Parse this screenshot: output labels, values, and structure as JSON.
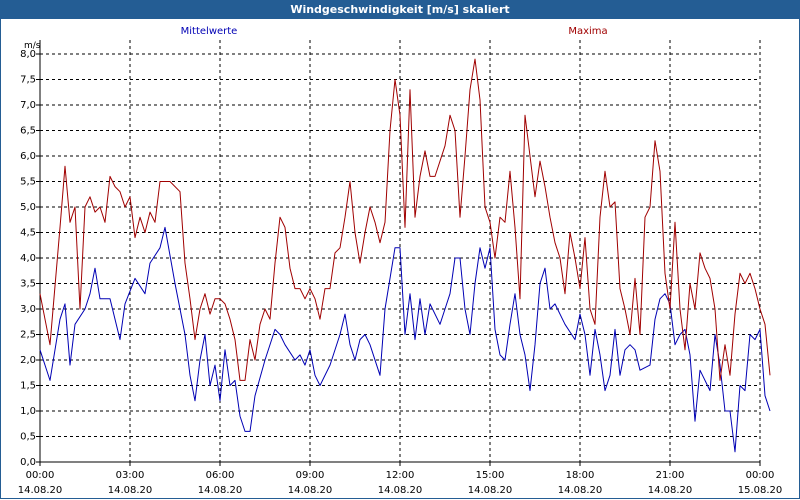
{
  "window": {
    "title": "Windgeschwindigkeit [m/s] skaliert"
  },
  "colors": {
    "titlebar": "#245d94",
    "mean": "#0000b4",
    "max": "#a00000",
    "grid": "#000000"
  },
  "chart_data": {
    "type": "line",
    "title": "Windgeschwindigkeit [m/s] skaliert",
    "ylabel": "m/s",
    "ylim": [
      0,
      8
    ],
    "yticks": [
      "0,0",
      "0,5",
      "1,0",
      "1,5",
      "2,0",
      "2,5",
      "3,0",
      "3,5",
      "4,0",
      "4,5",
      "5,0",
      "5,5",
      "6,0",
      "6,5",
      "7,0",
      "7,5",
      "8,0"
    ],
    "xlim": [
      "14.08.20 00:00",
      "15.08.20 00:00"
    ],
    "xticks": [
      {
        "time": "00:00",
        "date": "14.08.20"
      },
      {
        "time": "03:00",
        "date": "14.08.20"
      },
      {
        "time": "06:00",
        "date": "14.08.20"
      },
      {
        "time": "09:00",
        "date": "14.08.20"
      },
      {
        "time": "12:00",
        "date": "14.08.20"
      },
      {
        "time": "15:00",
        "date": "14.08.20"
      },
      {
        "time": "18:00",
        "date": "14.08.20"
      },
      {
        "time": "21:00",
        "date": "14.08.20"
      },
      {
        "time": "00:00",
        "date": "15.08.20"
      }
    ],
    "grid": true,
    "series": [
      {
        "name": "Mittelwerte",
        "color": "#0000b4",
        "points": [
          [
            "00:00",
            2.2
          ],
          [
            "00:20",
            1.6
          ],
          [
            "00:40",
            2.8
          ],
          [
            "00:50",
            3.1
          ],
          [
            "01:00",
            1.9
          ],
          [
            "01:10",
            2.7
          ],
          [
            "01:30",
            3.0
          ],
          [
            "01:40",
            3.3
          ],
          [
            "01:50",
            3.8
          ],
          [
            "02:00",
            3.2
          ],
          [
            "02:20",
            3.2
          ],
          [
            "02:40",
            2.4
          ],
          [
            "02:50",
            3.1
          ],
          [
            "03:10",
            3.6
          ],
          [
            "03:30",
            3.3
          ],
          [
            "03:40",
            3.9
          ],
          [
            "04:00",
            4.2
          ],
          [
            "04:10",
            4.6
          ],
          [
            "04:30",
            3.5
          ],
          [
            "04:50",
            2.5
          ],
          [
            "05:00",
            1.7
          ],
          [
            "05:10",
            1.2
          ],
          [
            "05:20",
            2.0
          ],
          [
            "05:30",
            2.5
          ],
          [
            "05:40",
            1.5
          ],
          [
            "05:50",
            1.9
          ],
          [
            "06:00",
            1.2
          ],
          [
            "06:10",
            2.2
          ],
          [
            "06:20",
            1.5
          ],
          [
            "06:30",
            1.6
          ],
          [
            "06:40",
            0.9
          ],
          [
            "06:50",
            0.6
          ],
          [
            "07:00",
            0.6
          ],
          [
            "07:10",
            1.3
          ],
          [
            "07:30",
            2.0
          ],
          [
            "07:50",
            2.6
          ],
          [
            "08:00",
            2.5
          ],
          [
            "08:10",
            2.3
          ],
          [
            "08:30",
            2.0
          ],
          [
            "08:40",
            2.1
          ],
          [
            "08:50",
            1.9
          ],
          [
            "09:00",
            2.2
          ],
          [
            "09:10",
            1.7
          ],
          [
            "09:20",
            1.5
          ],
          [
            "09:40",
            1.9
          ],
          [
            "10:00",
            2.5
          ],
          [
            "10:10",
            2.9
          ],
          [
            "10:20",
            2.3
          ],
          [
            "10:30",
            2.0
          ],
          [
            "10:40",
            2.4
          ],
          [
            "10:50",
            2.5
          ],
          [
            "11:00",
            2.3
          ],
          [
            "11:20",
            1.7
          ],
          [
            "11:30",
            3.0
          ],
          [
            "11:50",
            4.2
          ],
          [
            "12:00",
            4.2
          ],
          [
            "12:10",
            2.5
          ],
          [
            "12:20",
            3.3
          ],
          [
            "12:30",
            2.4
          ],
          [
            "12:40",
            3.2
          ],
          [
            "12:50",
            2.5
          ],
          [
            "13:00",
            3.1
          ],
          [
            "13:20",
            2.7
          ],
          [
            "13:30",
            3.0
          ],
          [
            "13:40",
            3.3
          ],
          [
            "13:50",
            4.0
          ],
          [
            "14:00",
            4.0
          ],
          [
            "14:10",
            3.0
          ],
          [
            "14:20",
            2.5
          ],
          [
            "14:30",
            3.5
          ],
          [
            "14:40",
            4.2
          ],
          [
            "14:50",
            3.8
          ],
          [
            "15:00",
            4.2
          ],
          [
            "15:10",
            2.6
          ],
          [
            "15:20",
            2.1
          ],
          [
            "15:30",
            2.0
          ],
          [
            "15:40",
            2.7
          ],
          [
            "15:50",
            3.3
          ],
          [
            "16:00",
            2.5
          ],
          [
            "16:10",
            2.1
          ],
          [
            "16:20",
            1.4
          ],
          [
            "16:30",
            2.3
          ],
          [
            "16:40",
            3.5
          ],
          [
            "16:50",
            3.8
          ],
          [
            "17:00",
            3.0
          ],
          [
            "17:10",
            3.1
          ],
          [
            "17:30",
            2.7
          ],
          [
            "17:50",
            2.4
          ],
          [
            "18:00",
            2.9
          ],
          [
            "18:10",
            2.5
          ],
          [
            "18:20",
            1.7
          ],
          [
            "18:30",
            2.6
          ],
          [
            "18:40",
            2.1
          ],
          [
            "18:50",
            1.4
          ],
          [
            "19:00",
            1.7
          ],
          [
            "19:10",
            2.6
          ],
          [
            "19:20",
            1.7
          ],
          [
            "19:30",
            2.2
          ],
          [
            "19:40",
            2.3
          ],
          [
            "19:50",
            2.2
          ],
          [
            "20:00",
            1.8
          ],
          [
            "20:20",
            1.9
          ],
          [
            "20:30",
            2.8
          ],
          [
            "20:40",
            3.2
          ],
          [
            "20:50",
            3.3
          ],
          [
            "21:00",
            3.1
          ],
          [
            "21:10",
            2.3
          ],
          [
            "21:20",
            2.5
          ],
          [
            "21:30",
            2.6
          ],
          [
            "21:40",
            2.1
          ],
          [
            "21:50",
            0.8
          ],
          [
            "22:00",
            1.8
          ],
          [
            "22:20",
            1.4
          ],
          [
            "22:30",
            2.5
          ],
          [
            "22:40",
            1.9
          ],
          [
            "22:50",
            1.0
          ],
          [
            "23:00",
            1.0
          ],
          [
            "23:10",
            0.2
          ],
          [
            "23:20",
            1.5
          ],
          [
            "23:30",
            1.4
          ],
          [
            "23:40",
            2.5
          ],
          [
            "23:50",
            2.4
          ],
          [
            "24:00",
            2.6
          ],
          [
            "24:10",
            1.3
          ],
          [
            "24:20",
            1.0
          ]
        ]
      },
      {
        "name": "Maxima",
        "color": "#a00000",
        "points": [
          [
            "00:00",
            3.3
          ],
          [
            "00:20",
            2.3
          ],
          [
            "00:40",
            4.6
          ],
          [
            "00:50",
            5.8
          ],
          [
            "01:00",
            4.7
          ],
          [
            "01:10",
            5.0
          ],
          [
            "01:20",
            3.0
          ],
          [
            "01:30",
            5.0
          ],
          [
            "01:40",
            5.2
          ],
          [
            "01:50",
            4.9
          ],
          [
            "02:00",
            5.0
          ],
          [
            "02:10",
            4.7
          ],
          [
            "02:20",
            5.6
          ],
          [
            "02:30",
            5.4
          ],
          [
            "02:40",
            5.3
          ],
          [
            "02:50",
            5.0
          ],
          [
            "03:00",
            5.2
          ],
          [
            "03:10",
            4.4
          ],
          [
            "03:20",
            4.8
          ],
          [
            "03:30",
            4.5
          ],
          [
            "03:40",
            4.9
          ],
          [
            "03:50",
            4.7
          ],
          [
            "04:00",
            5.5
          ],
          [
            "04:20",
            5.5
          ],
          [
            "04:40",
            5.3
          ],
          [
            "04:50",
            3.9
          ],
          [
            "05:00",
            3.2
          ],
          [
            "05:10",
            2.4
          ],
          [
            "05:20",
            3.0
          ],
          [
            "05:30",
            3.3
          ],
          [
            "05:40",
            2.9
          ],
          [
            "05:50",
            3.2
          ],
          [
            "06:00",
            3.2
          ],
          [
            "06:10",
            3.1
          ],
          [
            "06:20",
            2.8
          ],
          [
            "06:30",
            2.4
          ],
          [
            "06:40",
            1.6
          ],
          [
            "06:50",
            1.6
          ],
          [
            "07:00",
            2.4
          ],
          [
            "07:10",
            2.0
          ],
          [
            "07:20",
            2.7
          ],
          [
            "07:30",
            3.0
          ],
          [
            "07:40",
            2.8
          ],
          [
            "07:50",
            3.9
          ],
          [
            "08:00",
            4.8
          ],
          [
            "08:10",
            4.6
          ],
          [
            "08:20",
            3.8
          ],
          [
            "08:30",
            3.4
          ],
          [
            "08:40",
            3.4
          ],
          [
            "08:50",
            3.2
          ],
          [
            "09:00",
            3.4
          ],
          [
            "09:10",
            3.2
          ],
          [
            "09:20",
            2.8
          ],
          [
            "09:30",
            3.4
          ],
          [
            "09:40",
            3.4
          ],
          [
            "09:50",
            4.1
          ],
          [
            "10:00",
            4.2
          ],
          [
            "10:10",
            4.8
          ],
          [
            "10:20",
            5.5
          ],
          [
            "10:30",
            4.5
          ],
          [
            "10:40",
            3.9
          ],
          [
            "10:50",
            4.5
          ],
          [
            "11:00",
            5.0
          ],
          [
            "11:10",
            4.7
          ],
          [
            "11:20",
            4.3
          ],
          [
            "11:30",
            4.7
          ],
          [
            "11:40",
            6.5
          ],
          [
            "11:50",
            7.5
          ],
          [
            "12:00",
            6.8
          ],
          [
            "12:10",
            4.6
          ],
          [
            "12:20",
            7.3
          ],
          [
            "12:30",
            4.8
          ],
          [
            "12:40",
            5.6
          ],
          [
            "12:50",
            6.1
          ],
          [
            "13:00",
            5.6
          ],
          [
            "13:10",
            5.6
          ],
          [
            "13:30",
            6.2
          ],
          [
            "13:40",
            6.8
          ],
          [
            "13:50",
            6.5
          ],
          [
            "14:00",
            4.8
          ],
          [
            "14:10",
            6.0
          ],
          [
            "14:20",
            7.3
          ],
          [
            "14:30",
            7.9
          ],
          [
            "14:40",
            7.1
          ],
          [
            "14:50",
            5.0
          ],
          [
            "15:00",
            4.7
          ],
          [
            "15:10",
            4.0
          ],
          [
            "15:20",
            4.8
          ],
          [
            "15:30",
            4.7
          ],
          [
            "15:40",
            5.7
          ],
          [
            "15:50",
            4.6
          ],
          [
            "16:00",
            3.2
          ],
          [
            "16:10",
            6.8
          ],
          [
            "16:20",
            6.0
          ],
          [
            "16:30",
            5.2
          ],
          [
            "16:40",
            5.9
          ],
          [
            "16:50",
            5.4
          ],
          [
            "17:00",
            4.8
          ],
          [
            "17:10",
            4.3
          ],
          [
            "17:20",
            4.0
          ],
          [
            "17:30",
            3.3
          ],
          [
            "17:40",
            4.5
          ],
          [
            "17:50",
            4.0
          ],
          [
            "18:00",
            3.4
          ],
          [
            "18:10",
            4.4
          ],
          [
            "18:20",
            3.0
          ],
          [
            "18:30",
            2.7
          ],
          [
            "18:40",
            4.8
          ],
          [
            "18:50",
            5.7
          ],
          [
            "19:00",
            5.0
          ],
          [
            "19:10",
            5.1
          ],
          [
            "19:20",
            3.4
          ],
          [
            "19:30",
            3.0
          ],
          [
            "19:40",
            2.5
          ],
          [
            "19:50",
            3.6
          ],
          [
            "20:00",
            2.5
          ],
          [
            "20:10",
            4.8
          ],
          [
            "20:20",
            5.0
          ],
          [
            "20:30",
            6.3
          ],
          [
            "20:40",
            5.7
          ],
          [
            "20:50",
            3.7
          ],
          [
            "21:00",
            3.0
          ],
          [
            "21:10",
            4.7
          ],
          [
            "21:20",
            3.0
          ],
          [
            "21:30",
            2.2
          ],
          [
            "21:40",
            3.5
          ],
          [
            "21:50",
            3.0
          ],
          [
            "22:00",
            4.1
          ],
          [
            "22:10",
            3.8
          ],
          [
            "22:20",
            3.6
          ],
          [
            "22:30",
            3.0
          ],
          [
            "22:40",
            1.6
          ],
          [
            "22:50",
            2.3
          ],
          [
            "23:00",
            1.7
          ],
          [
            "23:10",
            2.9
          ],
          [
            "23:20",
            3.7
          ],
          [
            "23:30",
            3.5
          ],
          [
            "23:40",
            3.7
          ],
          [
            "23:50",
            3.4
          ],
          [
            "24:00",
            3.0
          ],
          [
            "24:10",
            2.7
          ],
          [
            "24:20",
            1.7
          ]
        ]
      }
    ]
  }
}
